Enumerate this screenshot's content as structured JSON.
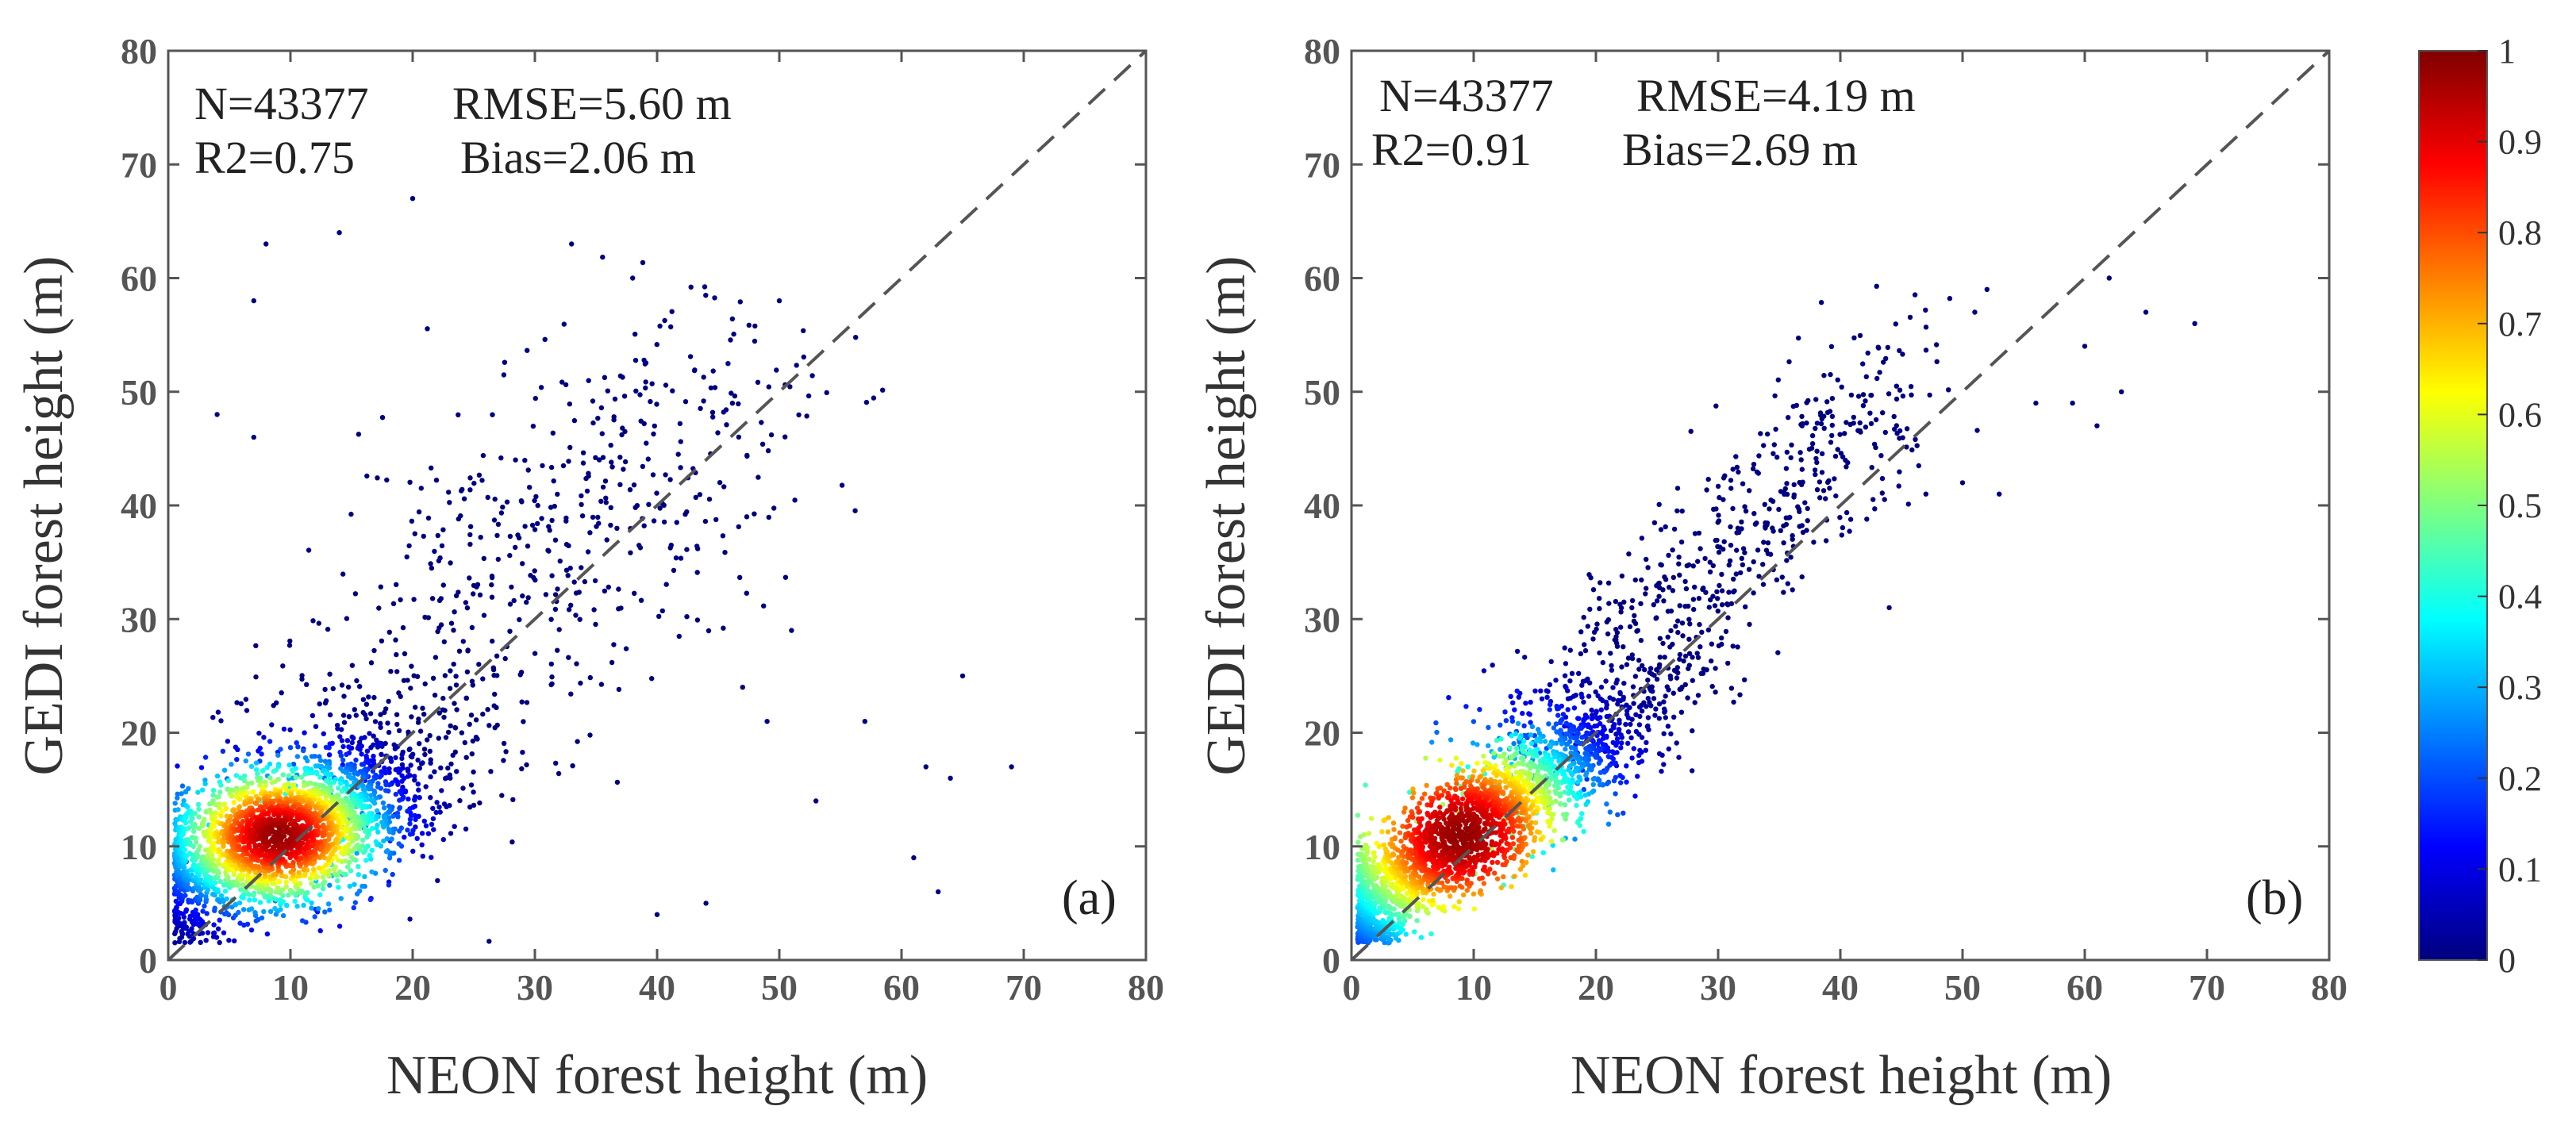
{
  "figure": {
    "background": "#ffffff"
  },
  "chart_data": [
    {
      "type": "scatter",
      "panel_label": "(a)",
      "xlabel": "NEON forest height (m)",
      "ylabel": "GEDI forest height (m)",
      "xlim": [
        0,
        80
      ],
      "ylim": [
        0,
        80
      ],
      "xticks": [
        "0",
        "10",
        "20",
        "30",
        "40",
        "50",
        "60",
        "70",
        "80"
      ],
      "yticks": [
        "0",
        "10",
        "20",
        "30",
        "40",
        "50",
        "60",
        "70",
        "80"
      ],
      "stats": {
        "n": "N=43377",
        "rmse": "RMSE=5.60 m",
        "r2": "R2=0.75",
        "bias": "Bias=2.06 m"
      },
      "reference_line": "1:1 dashed",
      "density_peak": [
        9,
        11
      ],
      "density_spread": {
        "x": 5.0,
        "y": 3.8,
        "corr": 0.55
      },
      "point_count_drawn": 2600,
      "outliers": [
        [
          8,
          63
        ],
        [
          7,
          58
        ],
        [
          14,
          64
        ],
        [
          20,
          67
        ],
        [
          33,
          63
        ],
        [
          38,
          60
        ],
        [
          50,
          58
        ],
        [
          4,
          48
        ],
        [
          7,
          46
        ],
        [
          49,
          21
        ],
        [
          57,
          21
        ],
        [
          62,
          17
        ],
        [
          64,
          16
        ],
        [
          69,
          17
        ],
        [
          53,
          14
        ],
        [
          61,
          9
        ],
        [
          63,
          6
        ],
        [
          40,
          4
        ],
        [
          44,
          5
        ],
        [
          47,
          24
        ],
        [
          51,
          29
        ],
        [
          65,
          25
        ]
      ]
    },
    {
      "type": "scatter",
      "panel_label": "(b)",
      "xlabel": "NEON forest height (m)",
      "ylabel": "GEDI forest height  (m)",
      "xlim": [
        0,
        80
      ],
      "ylim": [
        0,
        80
      ],
      "xticks": [
        "0",
        "10",
        "20",
        "30",
        "40",
        "50",
        "60",
        "70",
        "80"
      ],
      "yticks": [
        "0",
        "10",
        "20",
        "30",
        "40",
        "50",
        "60",
        "70",
        "80"
      ],
      "stats": {
        "n": "N=43377",
        "rmse": "RMSE=4.19 m",
        "r2": "R2=0.91",
        "bias": "Bias=2.69 m"
      },
      "reference_line": "1:1 dashed",
      "density_peak": [
        9,
        11
      ],
      "density_spread": {
        "x": 6.5,
        "y": 6.0,
        "corr": 0.9
      },
      "point_count_drawn": 2600,
      "outliers": [
        [
          52,
          59
        ],
        [
          51,
          57
        ],
        [
          62,
          60
        ],
        [
          60,
          54
        ],
        [
          65,
          57
        ],
        [
          69,
          56
        ],
        [
          56,
          49
        ],
        [
          59,
          49
        ],
        [
          61,
          47
        ],
        [
          63,
          50
        ],
        [
          53,
          41
        ],
        [
          50,
          42
        ],
        [
          47,
          41
        ],
        [
          44,
          31
        ]
      ]
    }
  ],
  "colorbar": {
    "min_label": "0",
    "max_label": "1",
    "ticks": [
      "0",
      "0.1",
      "0.2",
      "0.3",
      "0.4",
      "0.5",
      "0.6",
      "0.7",
      "0.8",
      "0.9",
      "1"
    ],
    "colormap": "jet",
    "stops": [
      "#00007f",
      "#0000ff",
      "#007fff",
      "#00ffff",
      "#7fff7f",
      "#ffff00",
      "#ff7f00",
      "#ff0000",
      "#7f0000"
    ]
  }
}
